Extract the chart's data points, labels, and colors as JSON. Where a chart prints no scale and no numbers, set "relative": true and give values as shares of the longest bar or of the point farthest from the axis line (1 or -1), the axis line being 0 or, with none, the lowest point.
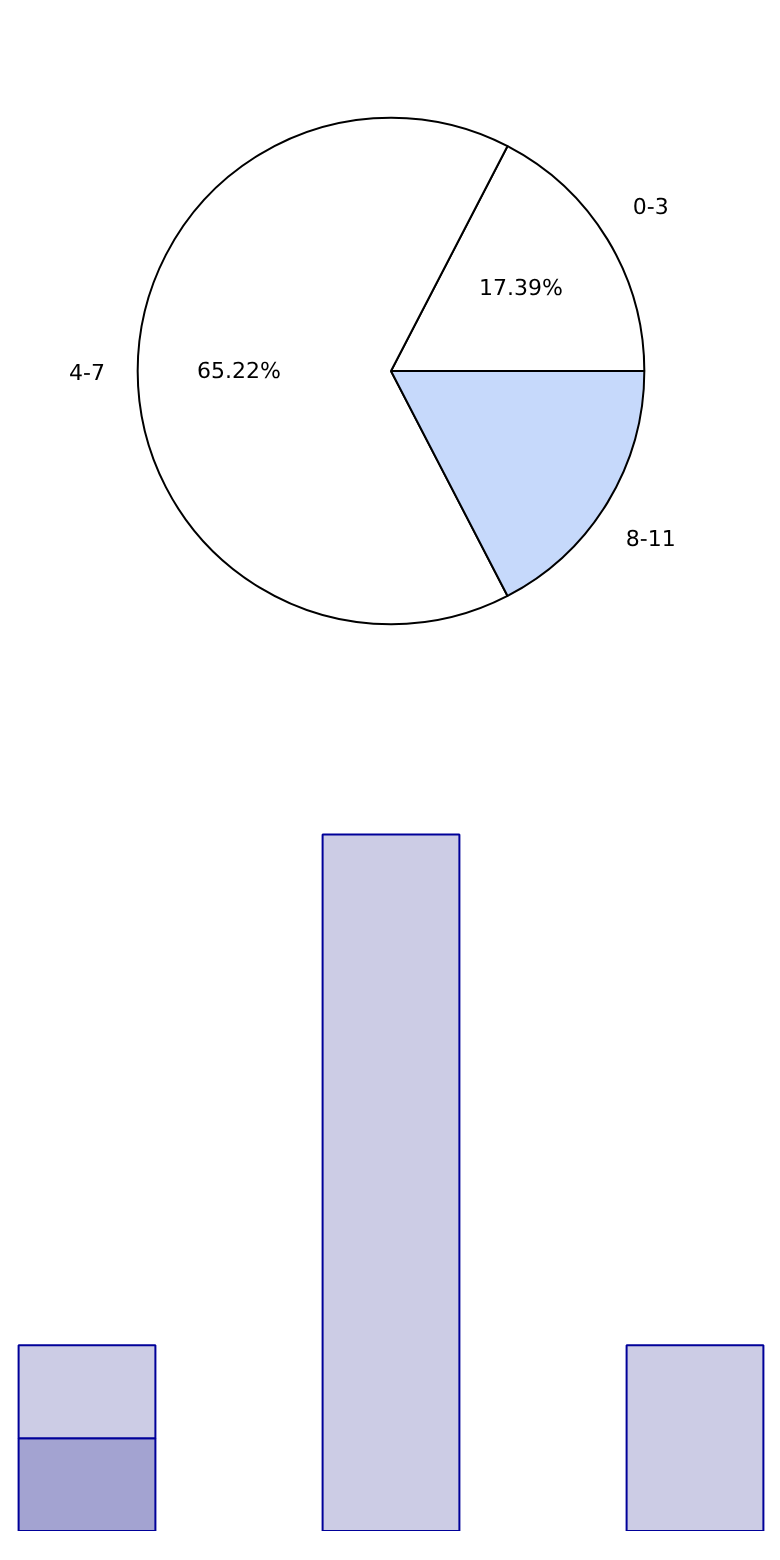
{
  "chart_data": [
    {
      "type": "pie",
      "categories": [
        "0-3",
        "4-7",
        "8-11"
      ],
      "values": [
        17.39,
        65.22,
        17.39
      ],
      "colors": [
        "#ffffff",
        "#ffffff",
        "#c6d9fb"
      ],
      "value_labels": [
        "17.39%",
        "65.22%",
        null
      ]
    },
    {
      "type": "bar",
      "stacked": true,
      "relative": true,
      "categories": [
        null,
        null,
        null
      ],
      "series": [
        {
          "color": "#a3a3d1",
          "values": [
            0.1333,
            0,
            0
          ]
        },
        {
          "color": "#ccccE5",
          "values": [
            0.1333,
            1,
            0.2667
          ]
        }
      ]
    }
  ]
}
